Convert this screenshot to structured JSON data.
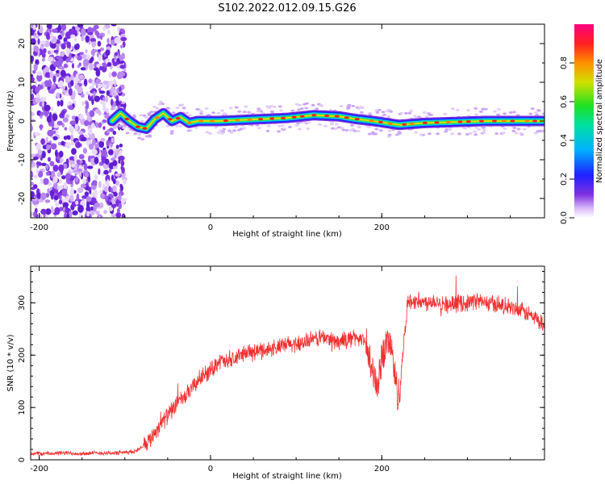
{
  "figure": {
    "title": "S102.2022.012.09.15.G26"
  },
  "chart_data": [
    {
      "type": "heatmap",
      "title": "S102.2022.012.09.15.G26",
      "xlabel": "Height of straight line (km)",
      "ylabel": "Frequency (Hz)",
      "xlim": [
        -210,
        390
      ],
      "ylim": [
        -25,
        25
      ],
      "x_ticks": [
        -200,
        0,
        200
      ],
      "y_ticks": [
        20,
        10,
        0,
        -10,
        -20
      ],
      "colorbar": {
        "label": "Normalized spectral amplitude",
        "range": [
          0,
          1
        ],
        "ticks": [
          0.0,
          0.2,
          0.4,
          0.6,
          0.8
        ],
        "colors": [
          "#ffffff",
          "#cfa8f7",
          "#7f20e8",
          "#2020ff",
          "#00c8ff",
          "#00e060",
          "#7fe000",
          "#e8e000",
          "#ff8000",
          "#ff0040",
          "#ff0080"
        ]
      },
      "noise_region": {
        "x_range": [
          -210,
          -100
        ],
        "y_range": [
          -25,
          25
        ]
      },
      "signal_ridge": {
        "x": [
          -115,
          -105,
          -95,
          -85,
          -75,
          -65,
          -55,
          -45,
          -35,
          -25,
          -15,
          -5,
          10,
          30,
          60,
          90,
          120,
          150,
          170,
          190,
          220,
          250,
          280,
          320,
          360,
          390
        ],
        "y": [
          0.0,
          2.0,
          0.0,
          -1.5,
          -2.0,
          0.5,
          2.0,
          0.0,
          1.0,
          -0.5,
          0.0,
          0.0,
          0.0,
          0.2,
          0.5,
          0.8,
          1.5,
          1.2,
          0.5,
          0.0,
          -1.0,
          -0.5,
          -0.3,
          0.0,
          0.0,
          0.0
        ]
      },
      "grid": false
    },
    {
      "type": "line",
      "xlabel": "Height of straight line (km)",
      "ylabel": "SNR (10 * v/v)",
      "xlim": [
        -210,
        390
      ],
      "ylim": [
        0,
        370
      ],
      "x_ticks": [
        -200,
        0,
        200
      ],
      "y_ticks": [
        0,
        100,
        200,
        300
      ],
      "color": "#f03030",
      "grid": false,
      "series": [
        {
          "x": [
            -210,
            -190,
            -170,
            -150,
            -130,
            -110,
            -90,
            -80,
            -70,
            -60,
            -50,
            -40,
            -30,
            -20,
            -10,
            0,
            10,
            20,
            30,
            40,
            50,
            60,
            70,
            80,
            90,
            100,
            110,
            120,
            130,
            140,
            150,
            160,
            170,
            180,
            190,
            195,
            200,
            205,
            210,
            215,
            220,
            230,
            240,
            250,
            260,
            270,
            280,
            290,
            300,
            310,
            320,
            330,
            340,
            350,
            360,
            370,
            380,
            390
          ],
          "y": [
            12,
            12,
            13,
            12,
            13,
            13,
            15,
            25,
            40,
            65,
            85,
            105,
            120,
            140,
            160,
            170,
            190,
            185,
            195,
            205,
            205,
            210,
            212,
            215,
            220,
            222,
            225,
            230,
            235,
            230,
            225,
            230,
            235,
            225,
            160,
            140,
            200,
            220,
            230,
            160,
            120,
            300,
            305,
            300,
            305,
            300,
            295,
            300,
            300,
            305,
            300,
            298,
            295,
            290,
            285,
            280,
            270,
            255
          ]
        }
      ]
    }
  ]
}
